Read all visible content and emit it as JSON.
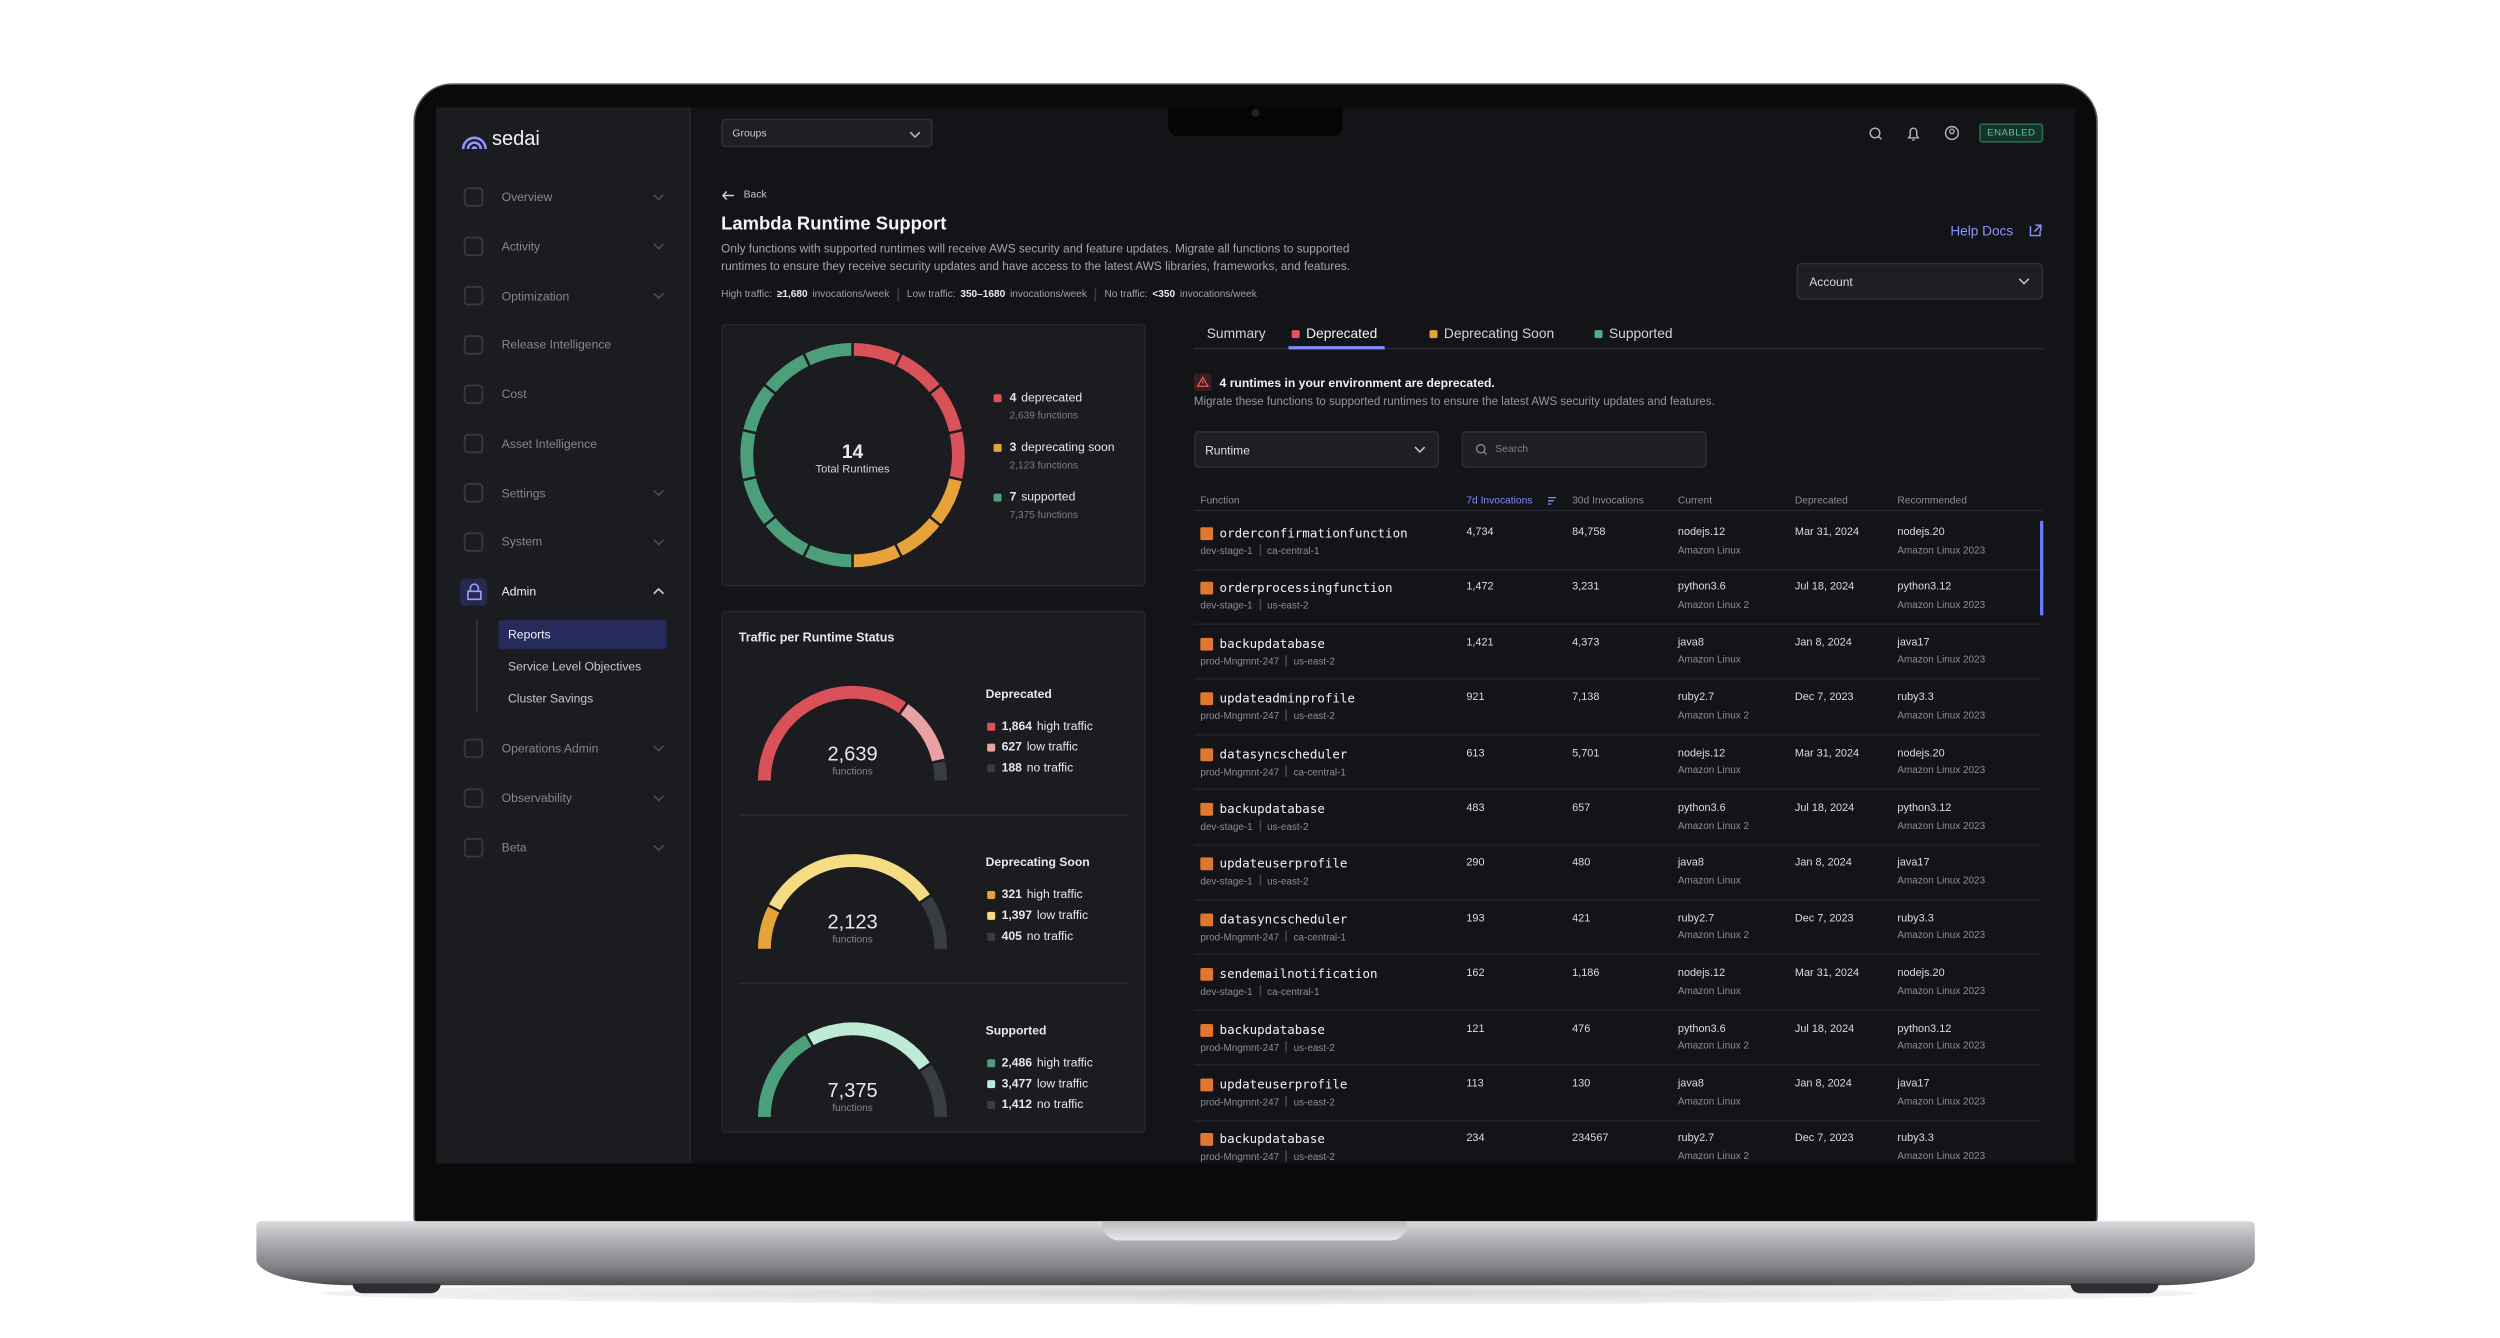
{
  "header": {
    "groups_select": "Groups",
    "status_badge": "ENABLED"
  },
  "sidebar": {
    "logo": "sedai",
    "items": [
      {
        "label": "Overview"
      },
      {
        "label": "Activity"
      },
      {
        "label": "Optimization"
      },
      {
        "label": "Release Intelligence"
      },
      {
        "label": "Cost"
      },
      {
        "label": "Asset Intelligence"
      },
      {
        "label": "Settings"
      },
      {
        "label": "System"
      },
      {
        "label": "Admin",
        "children": [
          "Reports",
          "Service Level Objectives",
          "Cluster Savings"
        ]
      },
      {
        "label": "Operations Admin"
      },
      {
        "label": "Observability"
      },
      {
        "label": "Beta"
      }
    ]
  },
  "page": {
    "back": "Back",
    "title": "Lambda Runtime Support",
    "description_lines": [
      "Only functions with supported runtimes will receive AWS security and feature updates. Migrate all functions to supported",
      "runtimes to ensure they receive security updates and have access to the latest AWS libraries, frameworks, and features."
    ],
    "traffic_legend": [
      {
        "label": "High traffic:",
        "value": "≥1,680",
        "unit": "invocations/week"
      },
      {
        "label": "Low traffic:",
        "value": "350–1680",
        "unit": "invocations/week"
      },
      {
        "label": "No traffic:",
        "value": "<350",
        "unit": "invocations/week"
      }
    ],
    "help_docs": "Help Docs",
    "account_select": "Account"
  },
  "summary_card": {
    "total": 14,
    "total_label": "Total Runtimes",
    "legend": [
      {
        "count": 4,
        "label": "deprecated",
        "functions": "2,639 functions",
        "color": "#d9525a"
      },
      {
        "count": 3,
        "label": "deprecating soon",
        "functions": "2,123 functions",
        "color": "#e8a23a"
      },
      {
        "count": 7,
        "label": "supported",
        "functions": "7,375 functions",
        "color": "#4c9f7b"
      }
    ]
  },
  "traffic_card": {
    "title": "Traffic per Runtime Status",
    "groups": [
      {
        "name": "Deprecated",
        "total": "2,639",
        "unit": "functions",
        "segments": [
          {
            "value": 1864,
            "label": "1,864",
            "text": "high traffic",
            "color": "#d9525a"
          },
          {
            "value": 627,
            "label": "627",
            "text": "low traffic",
            "color": "#e8a2a4"
          },
          {
            "value": 188,
            "label": "188",
            "text": "no traffic",
            "color": "#3a3c43"
          }
        ]
      },
      {
        "name": "Deprecating Soon",
        "total": "2,123",
        "unit": "functions",
        "segments": [
          {
            "value": 321,
            "label": "321",
            "text": "high traffic",
            "color": "#e8a23a"
          },
          {
            "value": 1397,
            "label": "1,397",
            "text": "low traffic",
            "color": "#f5dc82"
          },
          {
            "value": 405,
            "label": "405",
            "text": "no traffic",
            "color": "#3a3c43"
          }
        ]
      },
      {
        "name": "Supported",
        "total": "7,375",
        "unit": "functions",
        "segments": [
          {
            "value": 2486,
            "label": "2,486",
            "text": "high traffic",
            "color": "#4c9f7b"
          },
          {
            "value": 3477,
            "label": "3,477",
            "text": "low traffic",
            "color": "#bdebd5"
          },
          {
            "value": 1412,
            "label": "1,412",
            "text": "no traffic",
            "color": "#3a3c43"
          }
        ]
      }
    ]
  },
  "runtime_panel": {
    "tabs": [
      {
        "label": "Summary"
      },
      {
        "label": "Deprecated",
        "color": "#e0545b"
      },
      {
        "label": "Deprecating Soon",
        "color": "#e8a23a"
      },
      {
        "label": "Supported",
        "color": "#4fae84"
      }
    ],
    "active_tab": 1,
    "alert": {
      "title": "4 runtimes in your environment are deprecated.",
      "message": "Migrate these functions to supported runtimes to ensure the latest AWS security updates and features."
    },
    "runtime_select": "Runtime",
    "search_placeholder": "Search",
    "table": {
      "columns": [
        "Function",
        "7d Invocations",
        "30d Invocations",
        "Current",
        "Deprecated",
        "Recommended"
      ],
      "rows": [
        {
          "function": "orderconfirmationfunction",
          "env": "dev-stage-1",
          "region": "ca-central-1",
          "inv_7d": "4,734",
          "inv_30d": "84,758",
          "current": "nodejs.12",
          "current_platform": "Amazon Linux",
          "deprecated": "Mar 31, 2024",
          "recommended": "nodejs.20",
          "recommended_platform": "Amazon Linux 2023"
        },
        {
          "function": "orderprocessingfunction",
          "env": "dev-stage-1",
          "region": "us-east-2",
          "inv_7d": "1,472",
          "inv_30d": "3,231",
          "current": "python3.6",
          "current_platform": "Amazon Linux 2",
          "deprecated": "Jul 18, 2024",
          "recommended": "python3.12",
          "recommended_platform": "Amazon Linux 2023"
        },
        {
          "function": "backupdatabase",
          "env": "prod-Mngmnt-247",
          "region": "us-east-2",
          "inv_7d": "1,421",
          "inv_30d": "4,373",
          "current": "java8",
          "current_platform": "Amazon Linux",
          "deprecated": "Jan 8, 2024",
          "recommended": "java17",
          "recommended_platform": "Amazon Linux 2023"
        },
        {
          "function": "updateadminprofile",
          "env": "prod-Mngmnt-247",
          "region": "us-east-2",
          "inv_7d": "921",
          "inv_30d": "7,138",
          "current": "ruby2.7",
          "current_platform": "Amazon Linux 2",
          "deprecated": "Dec 7, 2023",
          "recommended": "ruby3.3",
          "recommended_platform": "Amazon Linux 2023"
        },
        {
          "function": "datasyncscheduler",
          "env": "prod-Mngmnt-247",
          "region": "ca-central-1",
          "inv_7d": "613",
          "inv_30d": "5,701",
          "current": "nodejs.12",
          "current_platform": "Amazon Linux",
          "deprecated": "Mar 31, 2024",
          "recommended": "nodejs.20",
          "recommended_platform": "Amazon Linux 2023"
        },
        {
          "function": "backupdatabase",
          "env": "dev-stage-1",
          "region": "us-east-2",
          "inv_7d": "483",
          "inv_30d": "657",
          "current": "python3.6",
          "current_platform": "Amazon Linux 2",
          "deprecated": "Jul 18, 2024",
          "recommended": "python3.12",
          "recommended_platform": "Amazon Linux 2023"
        },
        {
          "function": "updateuserprofile",
          "env": "dev-stage-1",
          "region": "us-east-2",
          "inv_7d": "290",
          "inv_30d": "480",
          "current": "java8",
          "current_platform": "Amazon Linux",
          "deprecated": "Jan 8, 2024",
          "recommended": "java17",
          "recommended_platform": "Amazon Linux 2023"
        },
        {
          "function": "datasyncscheduler",
          "env": "prod-Mngmnt-247",
          "region": "ca-central-1",
          "inv_7d": "193",
          "inv_30d": "421",
          "current": "ruby2.7",
          "current_platform": "Amazon Linux 2",
          "deprecated": "Dec 7, 2023",
          "recommended": "ruby3.3",
          "recommended_platform": "Amazon Linux 2023"
        },
        {
          "function": "sendemailnotification",
          "env": "dev-stage-1",
          "region": "ca-central-1",
          "inv_7d": "162",
          "inv_30d": "1,186",
          "current": "nodejs.12",
          "current_platform": "Amazon Linux",
          "deprecated": "Mar 31, 2024",
          "recommended": "nodejs.20",
          "recommended_platform": "Amazon Linux 2023"
        },
        {
          "function": "backupdatabase",
          "env": "prod-Mngmnt-247",
          "region": "us-east-2",
          "inv_7d": "121",
          "inv_30d": "476",
          "current": "python3.6",
          "current_platform": "Amazon Linux 2",
          "deprecated": "Jul 18, 2024",
          "recommended": "python3.12",
          "recommended_platform": "Amazon Linux 2023"
        },
        {
          "function": "updateuserprofile",
          "env": "prod-Mngmnt-247",
          "region": "us-east-2",
          "inv_7d": "113",
          "inv_30d": "130",
          "current": "java8",
          "current_platform": "Amazon Linux",
          "deprecated": "Jan 8, 2024",
          "recommended": "java17",
          "recommended_platform": "Amazon Linux 2023"
        },
        {
          "function": "backupdatabase",
          "env": "prod-Mngmnt-247",
          "region": "us-east-2",
          "inv_7d": "234",
          "inv_30d": "234567",
          "current": "ruby2.7",
          "current_platform": "Amazon Linux 2",
          "deprecated": "Dec 7, 2023",
          "recommended": "ruby3.3",
          "recommended_platform": "Amazon Linux 2023"
        }
      ]
    }
  }
}
